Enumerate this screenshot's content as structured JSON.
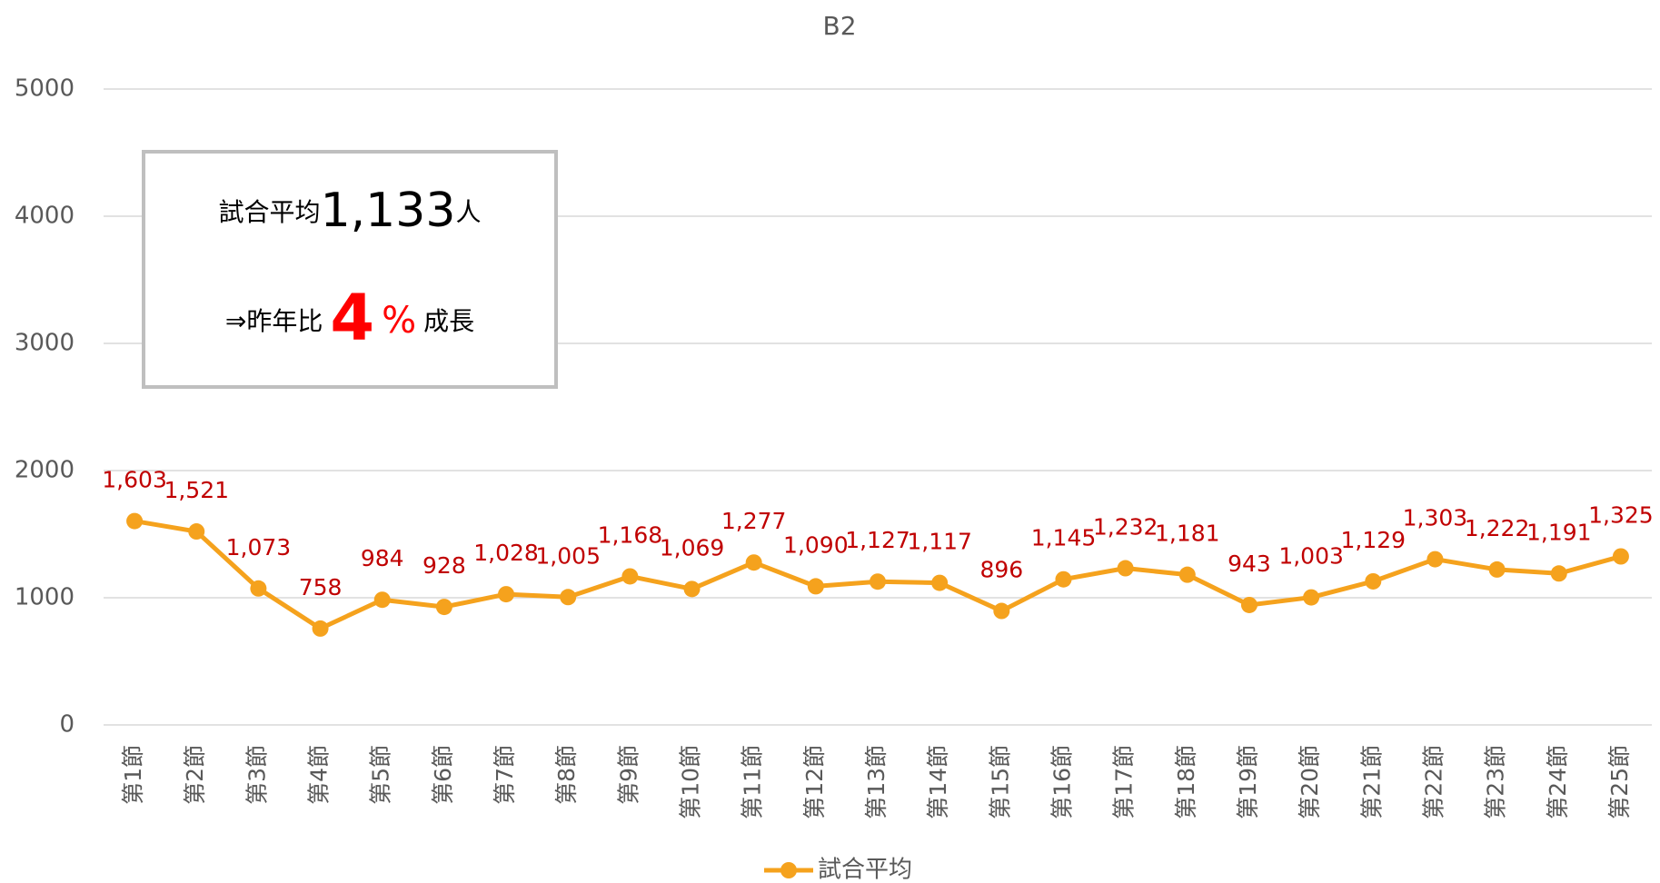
{
  "chart_data": {
    "type": "line",
    "title": "B2",
    "categories": [
      "第1節",
      "第2節",
      "第3節",
      "第4節",
      "第5節",
      "第6節",
      "第7節",
      "第8節",
      "第9節",
      "第10節",
      "第11節",
      "第12節",
      "第13節",
      "第14節",
      "第15節",
      "第16節",
      "第17節",
      "第18節",
      "第19節",
      "第20節",
      "第21節",
      "第22節",
      "第23節",
      "第24節",
      "第25節"
    ],
    "series": [
      {
        "name": "試合平均",
        "color": "#f5a21d",
        "values": [
          1603,
          1521,
          1073,
          758,
          984,
          928,
          1028,
          1005,
          1168,
          1069,
          1277,
          1090,
          1127,
          1117,
          896,
          1145,
          1232,
          1181,
          943,
          1003,
          1129,
          1303,
          1222,
          1191,
          1325
        ],
        "value_labels": [
          "1,603",
          "1,521",
          "1,073",
          "758",
          "984",
          "928",
          "1,028",
          "1,005",
          "1,168",
          "1,069",
          "1,277",
          "1,090",
          "1,127",
          "1,117",
          "896",
          "1,145",
          "1,232",
          "1,181",
          "943",
          "1,003",
          "1,129",
          "1,303",
          "1,222",
          "1,191",
          "1,325"
        ],
        "label_color": "#c00000"
      }
    ],
    "ylim": [
      0,
      5000
    ],
    "yticks": [
      0,
      1000,
      2000,
      3000,
      4000,
      5000
    ],
    "grid": true,
    "legend": "bottom",
    "annotation": {
      "line1": [
        "試合平均",
        "1,133",
        "人"
      ],
      "line2": [
        "⇒昨年比",
        "4",
        "%",
        "成長"
      ]
    }
  }
}
